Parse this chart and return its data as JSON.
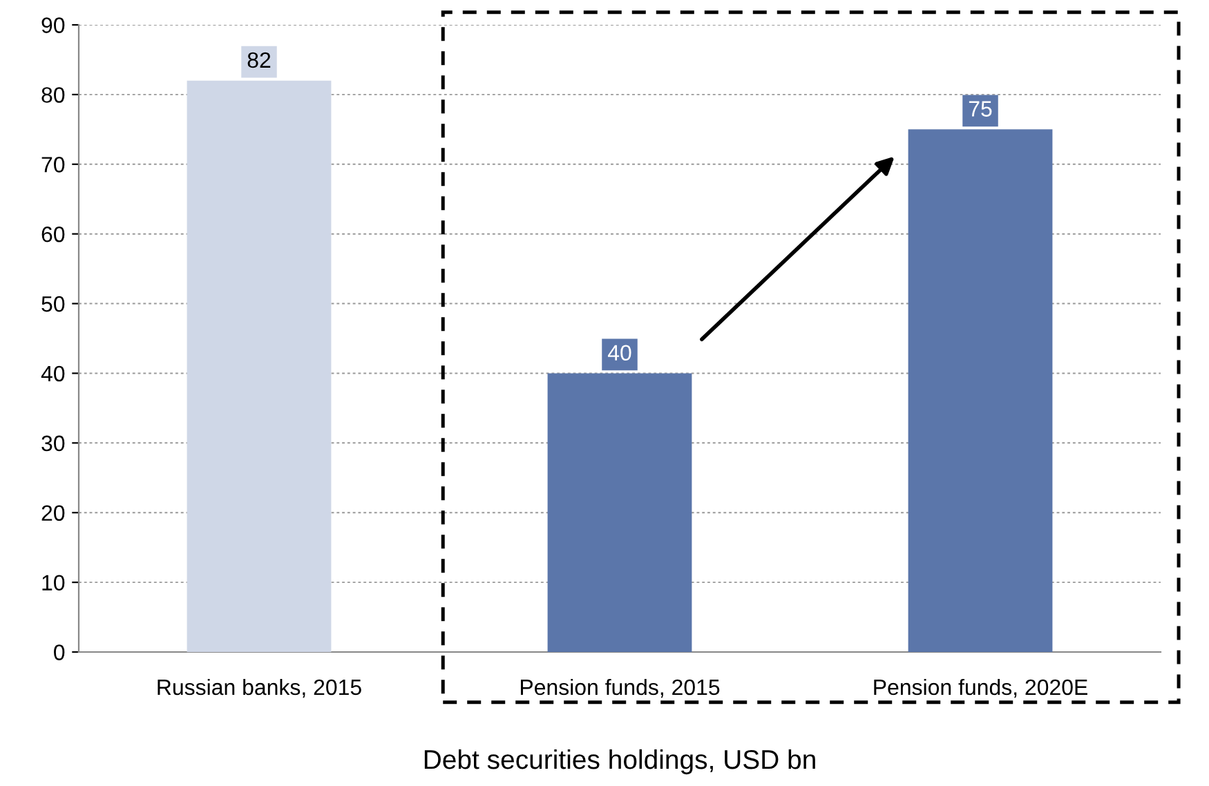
{
  "chart_data": {
    "type": "bar",
    "xlabel": "Debt securities holdings, USD bn",
    "categories": [
      "Russian banks, 2015",
      "Pension funds, 2015",
      "Pension funds, 2020E"
    ],
    "values": [
      82,
      40,
      75
    ],
    "colors": [
      "#cfd7e7",
      "#5b76aa",
      "#5b76aa"
    ],
    "ylim": [
      0,
      90
    ],
    "yticks": [
      0,
      10,
      20,
      30,
      40,
      50,
      60,
      70,
      80,
      90
    ],
    "grid": "y",
    "data_labels": true
  }
}
